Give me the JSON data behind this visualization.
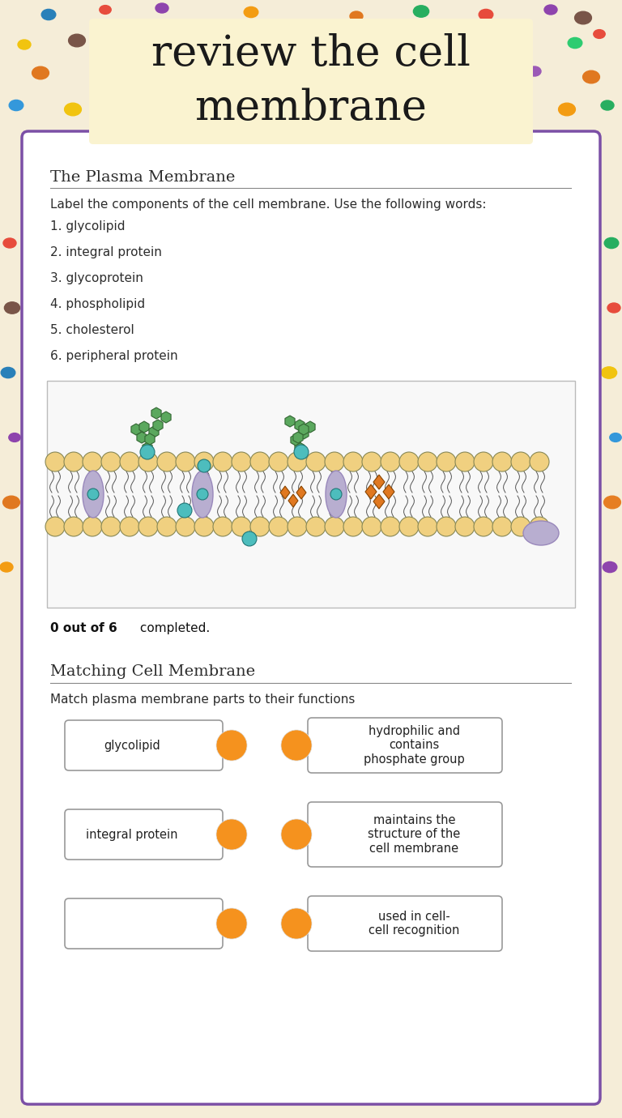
{
  "bg_color": "#f5edd8",
  "title_text": "review the cell\nmembrane",
  "title_box_color": "#faf3d0",
  "title_font_size": 38,
  "white_panel_color": "#ffffff",
  "white_panel_border": "#7b4fa6",
  "section1_title": "The Plasma Membrane",
  "section1_instruction": "Label the components of the cell membrane. Use the following words:",
  "section1_items": [
    "1. glycolipid",
    "2. integral protein",
    "3. glycoprotein",
    "4. phospholipid",
    "5. cholesterol",
    "6. peripheral protein"
  ],
  "score_text_bold": "0 out of 6",
  "score_text_normal": " completed.",
  "section2_title": "Matching Cell Membrane",
  "section2_instruction": "Match plasma membrane parts to their functions",
  "matching_left": [
    "glycolipid",
    "integral protein",
    ""
  ],
  "matching_right": [
    "hydrophilic and\ncontains\nphosphate group",
    "maintains the\nstructure of the\ncell membrane",
    "used in cell-\ncell recognition"
  ],
  "orange_circle_color": "#f5921e",
  "integral_protein_color": "#b8aed0",
  "phospholipid_head_color": "#f0d080",
  "glyco_color": "#5ba85e",
  "teal_color": "#4dbdbd",
  "cholesterol_color": "#e07820",
  "dot_data": [
    [
      60,
      18,
      11,
      "#2980b9"
    ],
    [
      130,
      12,
      9,
      "#e74c3c"
    ],
    [
      200,
      10,
      10,
      "#8e44ad"
    ],
    [
      310,
      15,
      11,
      "#f39c12"
    ],
    [
      440,
      20,
      10,
      "#e07820"
    ],
    [
      520,
      14,
      12,
      "#27ae60"
    ],
    [
      600,
      18,
      11,
      "#e74c3c"
    ],
    [
      680,
      12,
      10,
      "#8e44ad"
    ],
    [
      720,
      22,
      13,
      "#795548"
    ],
    [
      30,
      55,
      10,
      "#f1c40f"
    ],
    [
      95,
      50,
      13,
      "#795548"
    ],
    [
      165,
      48,
      11,
      "#f39c12"
    ],
    [
      240,
      45,
      12,
      "#e74c3c"
    ],
    [
      330,
      52,
      10,
      "#ff5722"
    ],
    [
      400,
      46,
      11,
      "#e91e63"
    ],
    [
      480,
      50,
      12,
      "#795548"
    ],
    [
      560,
      55,
      10,
      "#e67e22"
    ],
    [
      640,
      48,
      13,
      "#3498db"
    ],
    [
      710,
      53,
      11,
      "#2ecc71"
    ],
    [
      740,
      42,
      9,
      "#e74c3c"
    ],
    [
      50,
      90,
      13,
      "#e07820"
    ],
    [
      120,
      95,
      10,
      "#8e44ad"
    ],
    [
      190,
      88,
      12,
      "#f39c12"
    ],
    [
      270,
      92,
      11,
      "#27ae60"
    ],
    [
      355,
      88,
      13,
      "#795548"
    ],
    [
      430,
      95,
      10,
      "#ff9800"
    ],
    [
      510,
      90,
      12,
      "#e74c3c"
    ],
    [
      580,
      93,
      11,
      "#4caf50"
    ],
    [
      660,
      88,
      10,
      "#9b59b6"
    ],
    [
      730,
      95,
      13,
      "#e07820"
    ],
    [
      20,
      130,
      11,
      "#3498db"
    ],
    [
      90,
      135,
      13,
      "#f1c40f"
    ],
    [
      160,
      128,
      10,
      "#795548"
    ],
    [
      235,
      132,
      12,
      "#e74c3c"
    ],
    [
      315,
      128,
      11,
      "#2ecc71"
    ],
    [
      395,
      135,
      13,
      "#e67e22"
    ],
    [
      470,
      130,
      10,
      "#8e44ad"
    ],
    [
      545,
      132,
      12,
      "#ff5722"
    ],
    [
      625,
      128,
      11,
      "#3498db"
    ],
    [
      700,
      135,
      13,
      "#f39c12"
    ],
    [
      750,
      130,
      10,
      "#27ae60"
    ],
    [
      12,
      300,
      10,
      "#e74c3c"
    ],
    [
      15,
      380,
      12,
      "#795548"
    ],
    [
      10,
      460,
      11,
      "#2980b9"
    ],
    [
      18,
      540,
      9,
      "#8e44ad"
    ],
    [
      14,
      620,
      13,
      "#e07820"
    ],
    [
      8,
      700,
      10,
      "#f39c12"
    ],
    [
      755,
      300,
      11,
      "#27ae60"
    ],
    [
      758,
      380,
      10,
      "#e74c3c"
    ],
    [
      752,
      460,
      12,
      "#f1c40f"
    ],
    [
      760,
      540,
      9,
      "#3498db"
    ],
    [
      756,
      620,
      13,
      "#e67e22"
    ],
    [
      753,
      700,
      11,
      "#8e44ad"
    ]
  ]
}
